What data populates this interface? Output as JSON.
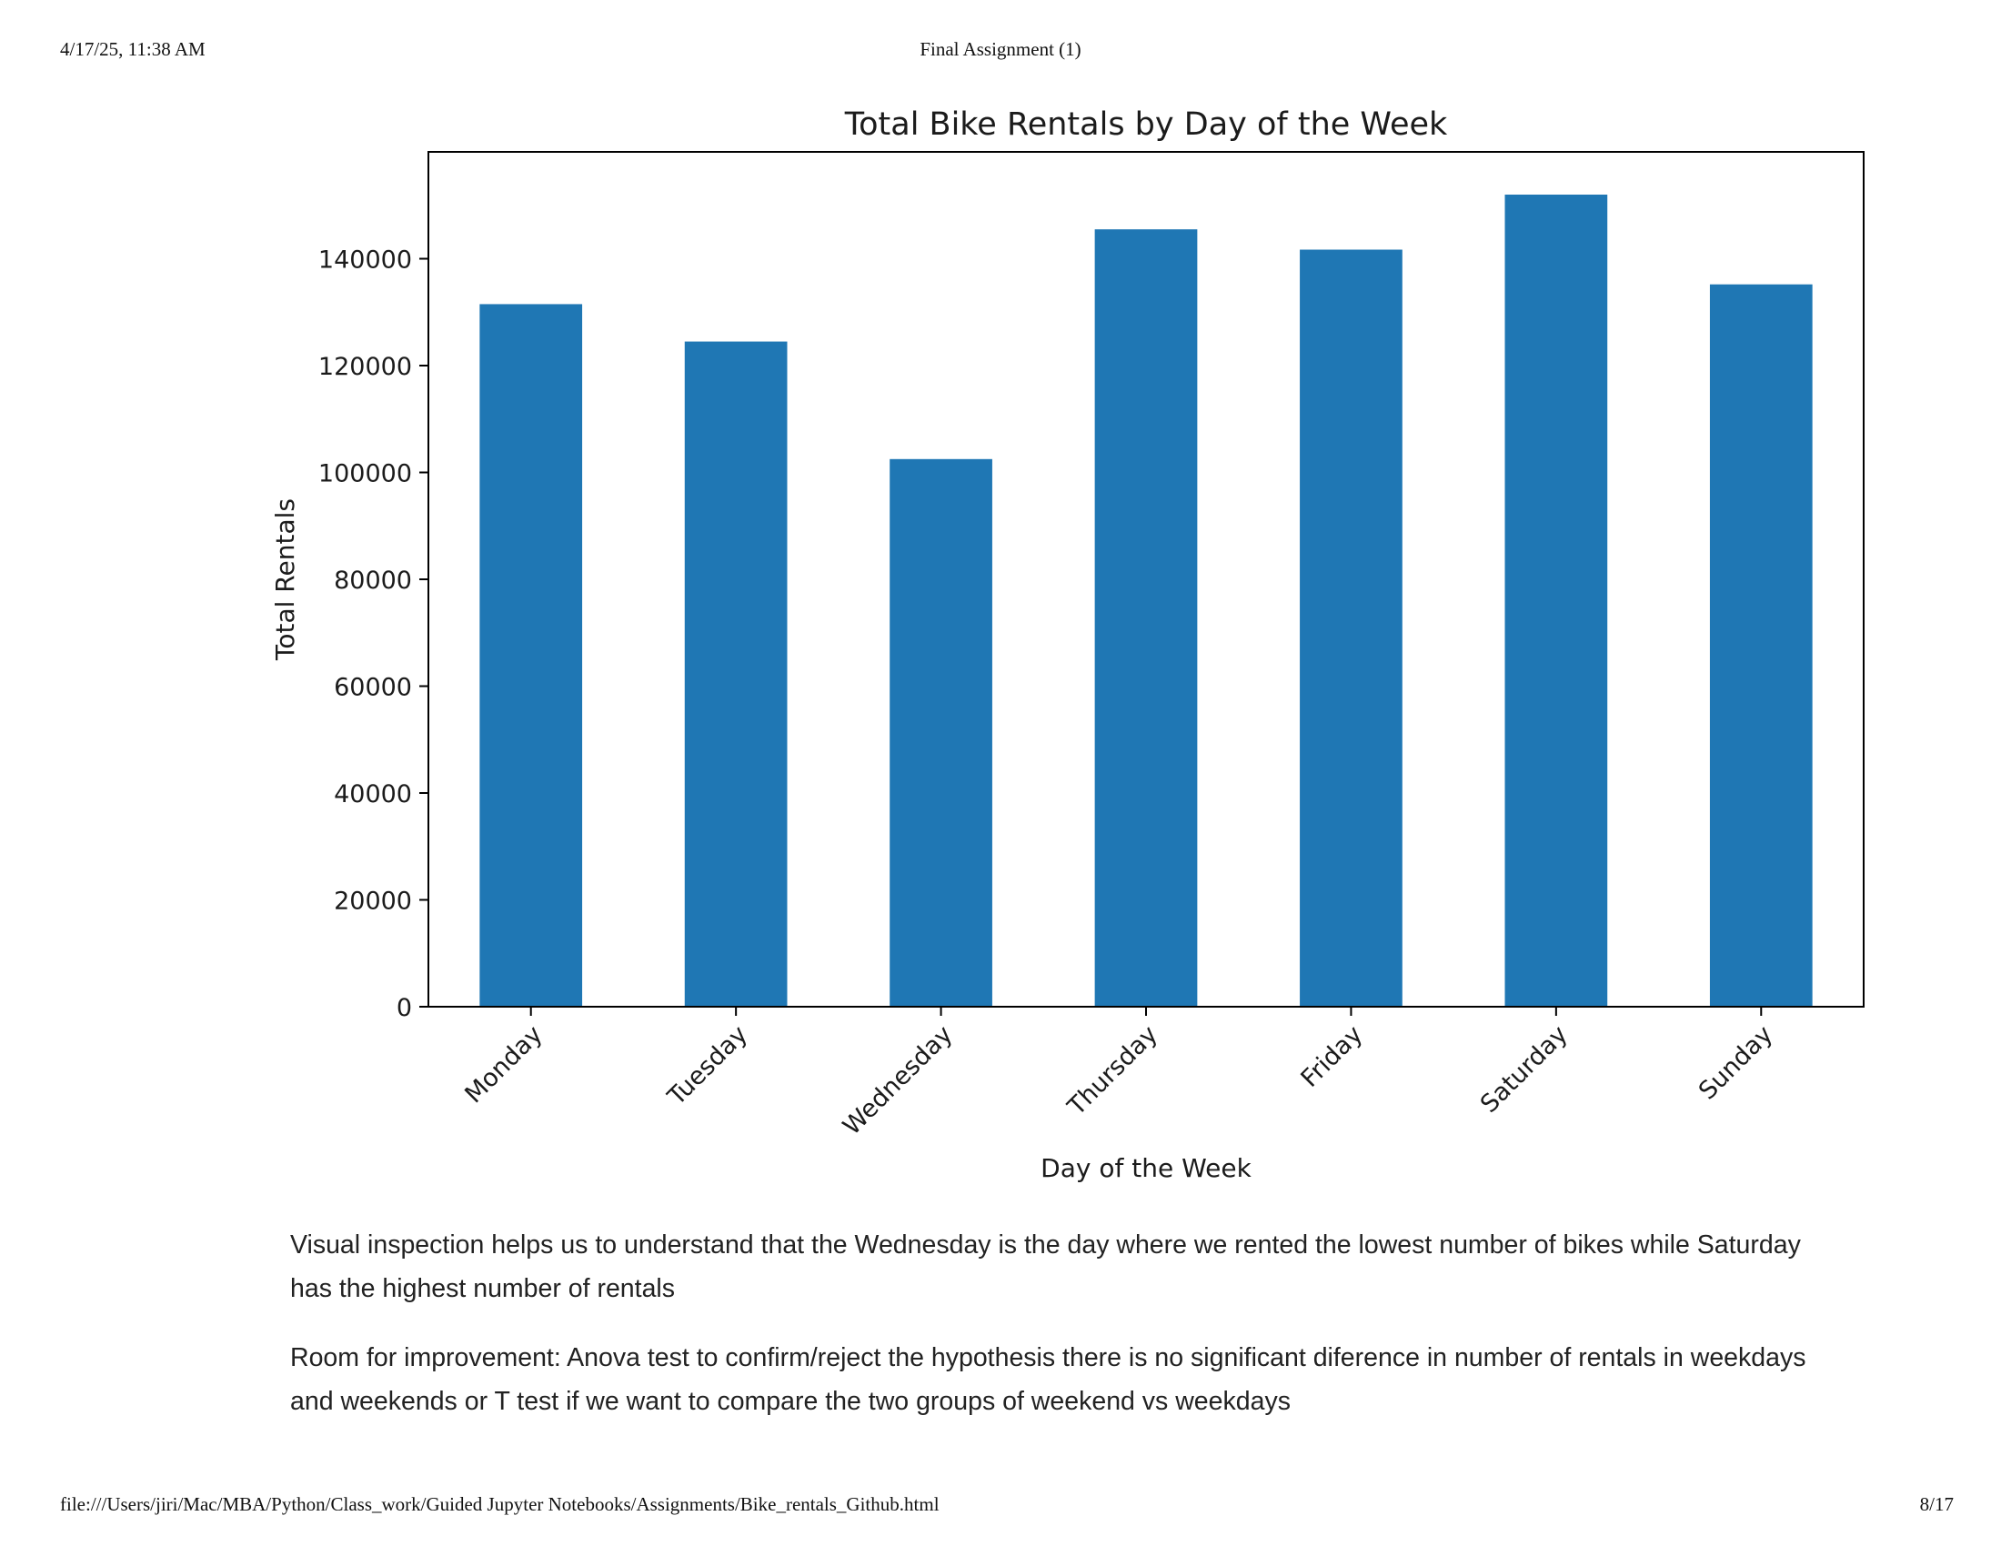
{
  "print_header": {
    "datetime": "4/17/25, 11:38 AM",
    "title": "Final Assignment (1)"
  },
  "chart_data": {
    "type": "bar",
    "title": "Total Bike Rentals by Day of the Week",
    "xlabel": "Day of the Week",
    "ylabel": "Total Rentals",
    "categories": [
      "Monday",
      "Tuesday",
      "Wednesday",
      "Thursday",
      "Friday",
      "Saturday",
      "Sunday"
    ],
    "values": [
      131500,
      124500,
      102500,
      145500,
      141700,
      152000,
      135200
    ],
    "yticks": [
      0,
      20000,
      40000,
      60000,
      80000,
      100000,
      120000,
      140000
    ],
    "ylim": [
      0,
      160000
    ],
    "grid": false,
    "bar_color": "#1f77b4"
  },
  "notes": {
    "p1": "Visual inspection helps us to understand that the Wednesday is the day where we rented the lowest number of bikes while Saturday has the highest number of rentals",
    "p2": "Room for improvement: Anova test to confirm/reject the hypothesis there is no significant diference in number of rentals in weekdays and weekends or T test if we want to compare the two groups of weekend vs weekdays"
  },
  "print_footer": {
    "path": "file:///Users/jiri/Mac/MBA/Python/Class_work/Guided Jupyter Notebooks/Assignments/Bike_rentals_Github.html",
    "page": "8/17"
  }
}
